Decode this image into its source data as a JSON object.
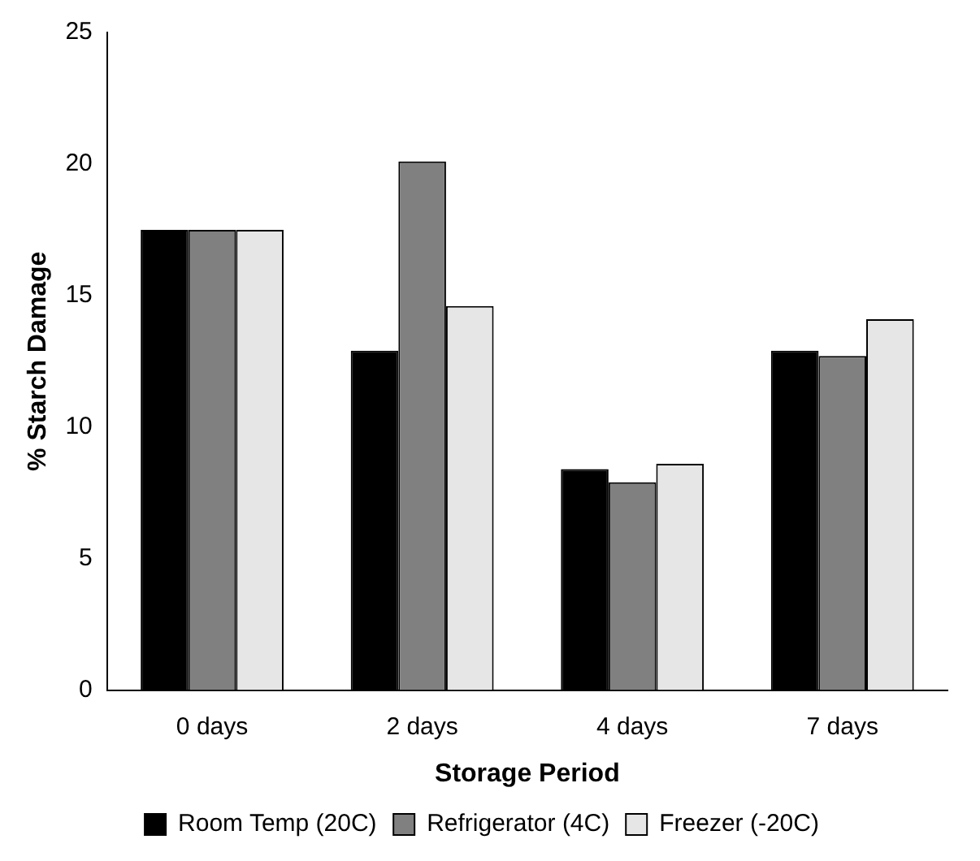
{
  "chart_data": {
    "type": "bar",
    "xlabel": "Storage Period",
    "ylabel": "% Starch Damage",
    "categories": [
      "0 days",
      "2 days",
      "4 days",
      "7 days"
    ],
    "series": [
      {
        "name": "Room Temp (20C)",
        "color": "#000000",
        "values": [
          17.5,
          12.9,
          8.4,
          12.9
        ]
      },
      {
        "name": "Refrigerator (4C)",
        "color": "#808080",
        "values": [
          17.5,
          20.1,
          7.9,
          12.7
        ]
      },
      {
        "name": "Freezer (-20C)",
        "color": "#e6e6e6",
        "values": [
          17.5,
          14.6,
          8.6,
          14.1
        ]
      }
    ],
    "ylim": [
      0,
      25
    ],
    "yticks": [
      0,
      5,
      10,
      15,
      20,
      25
    ],
    "grid": false,
    "legend": "bottom"
  }
}
